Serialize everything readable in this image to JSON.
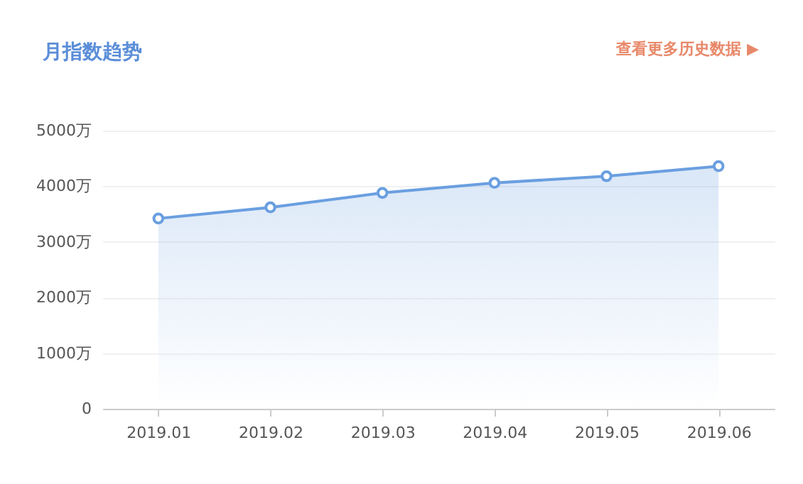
{
  "chart_data": {
    "type": "area",
    "title": "月指数趋势",
    "categories": [
      "2019.01",
      "2019.02",
      "2019.03",
      "2019.04",
      "2019.05",
      "2019.06"
    ],
    "series": [
      {
        "color": "#6a9fe0",
        "values": [
          3420,
          3620,
          3880,
          4060,
          4180,
          4360
        ]
      }
    ],
    "ylim": [
      0,
      5000
    ],
    "yticks": [
      0,
      {
        "value": 1000,
        "label": "1000万"
      },
      {
        "value": 2000,
        "label": "2000万"
      },
      {
        "value": 3000,
        "label": "3000万"
      },
      {
        "value": 4000,
        "label": "4000万"
      },
      {
        "value": 5000,
        "label": "5000万"
      }
    ],
    "grid": "y",
    "marker": "circle",
    "annotations": [
      "查看更多历史数据 ▶"
    ]
  }
}
